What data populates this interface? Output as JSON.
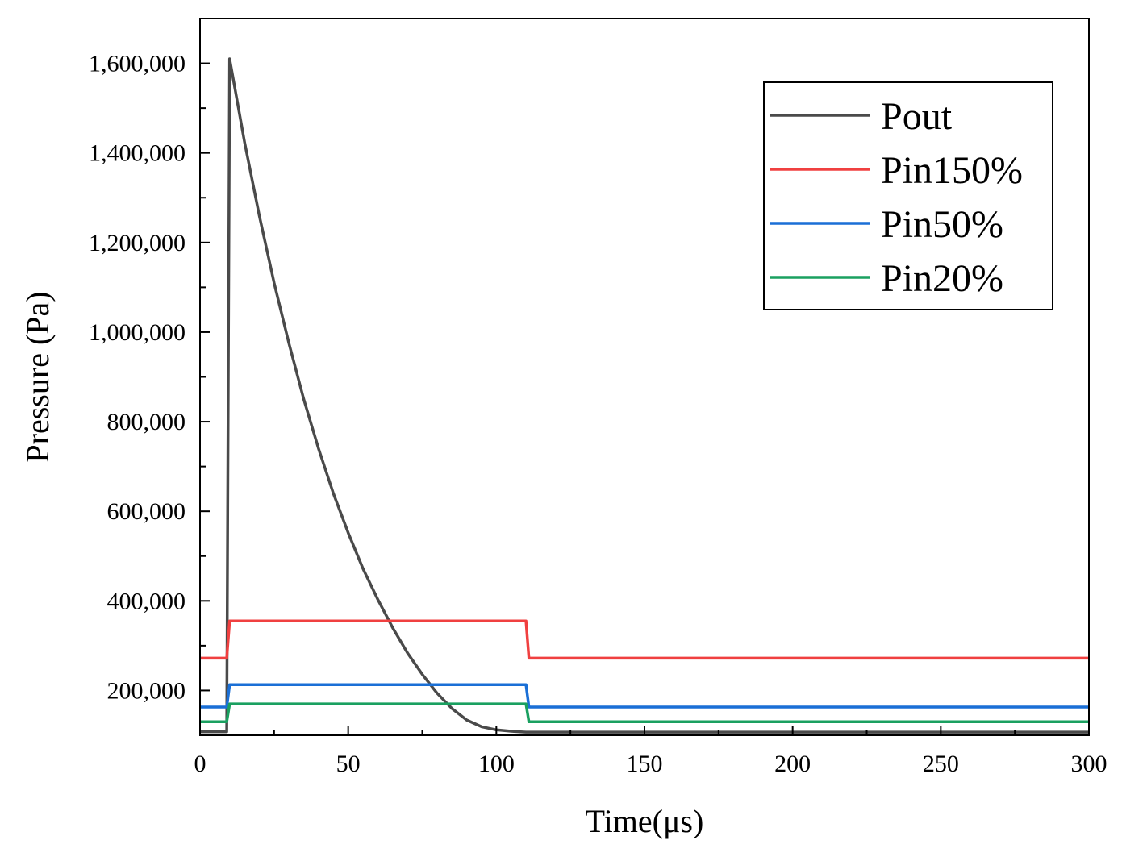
{
  "chart_data": {
    "type": "line",
    "title": "",
    "xlabel": "Time(μs)",
    "ylabel": "Pressure (Pa)",
    "xlim": [
      0,
      300
    ],
    "ylim": [
      100000,
      1700000
    ],
    "x_ticks": [
      0,
      50,
      100,
      150,
      200,
      250,
      300
    ],
    "x_tick_labels": [
      "0",
      "50",
      "100",
      "150",
      "200",
      "250",
      "300"
    ],
    "y_ticks": [
      200000,
      400000,
      600000,
      800000,
      1000000,
      1200000,
      1400000,
      1600000
    ],
    "y_tick_labels": [
      "200,000",
      "400,000",
      "600,000",
      "800,000",
      "1,000,000",
      "1,200,000",
      "1,400,000",
      "1,600,000"
    ],
    "legend_position": "top-right",
    "grid": false,
    "series": [
      {
        "name": "Pout",
        "color": "#4a4a4a",
        "x": [
          0,
          9,
          10,
          15,
          20,
          25,
          30,
          35,
          40,
          45,
          50,
          55,
          60,
          65,
          70,
          75,
          80,
          85,
          90,
          95,
          100,
          105,
          110,
          111,
          300
        ],
        "y": [
          108000,
          108000,
          1610000,
          1425000,
          1260000,
          1110000,
          975000,
          850000,
          740000,
          640000,
          552000,
          472000,
          403000,
          340000,
          284000,
          236000,
          194000,
          160000,
          134000,
          119000,
          112000,
          109000,
          107000,
          107000,
          107000
        ]
      },
      {
        "name": "Pin150%",
        "color": "#f04040",
        "x": [
          0,
          9,
          10,
          110,
          111,
          300
        ],
        "y": [
          272000,
          272000,
          355000,
          355000,
          272000,
          272000
        ]
      },
      {
        "name": "Pin50%",
        "color": "#1a6fd6",
        "x": [
          0,
          9,
          10,
          110,
          111,
          300
        ],
        "y": [
          163000,
          163000,
          213000,
          213000,
          163000,
          163000
        ]
      },
      {
        "name": "Pin20%",
        "color": "#1aa060",
        "x": [
          0,
          9,
          10,
          110,
          111,
          300
        ],
        "y": [
          130000,
          130000,
          170000,
          170000,
          130000,
          130000
        ]
      }
    ]
  }
}
